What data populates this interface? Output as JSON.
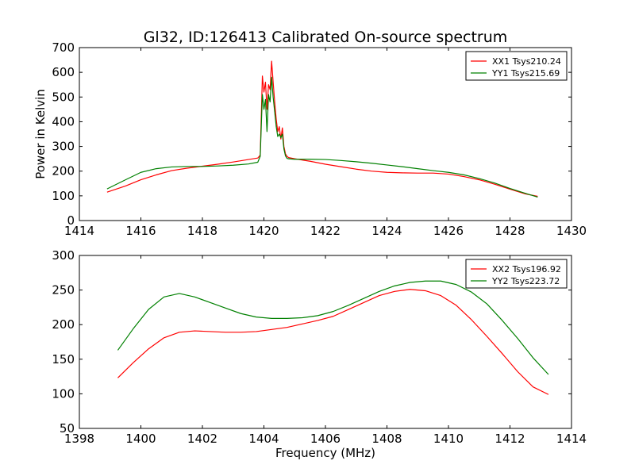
{
  "chart_data": [
    {
      "type": "line",
      "title": "Gl32, ID:126413 Calibrated On-source spectrum",
      "xlabel": "",
      "ylabel": "Power in Kelvin",
      "xlim": [
        1414,
        1430
      ],
      "ylim": [
        0,
        700
      ],
      "xticks": [
        "1414",
        "1416",
        "1418",
        "1420",
        "1422",
        "1424",
        "1426",
        "1428",
        "1430"
      ],
      "yticks": [
        "0",
        "100",
        "200",
        "300",
        "400",
        "500",
        "600",
        "700"
      ],
      "legend_position": "top-right",
      "grid": false,
      "series": [
        {
          "name": "XX1 Tsys210.24",
          "color": "#ff0000",
          "x": [
            1414.9,
            1415.5,
            1416,
            1416.5,
            1417,
            1417.5,
            1418,
            1418.5,
            1419,
            1419.5,
            1419.8,
            1419.88,
            1419.95,
            1420.0,
            1420.05,
            1420.1,
            1420.15,
            1420.2,
            1420.25,
            1420.3,
            1420.35,
            1420.4,
            1420.45,
            1420.5,
            1420.55,
            1420.6,
            1420.65,
            1420.7,
            1420.75,
            1420.8,
            1421,
            1421.5,
            1422,
            1422.5,
            1423,
            1423.5,
            1424,
            1424.5,
            1425,
            1425.5,
            1426,
            1426.5,
            1427,
            1427.5,
            1428,
            1428.5,
            1428.9
          ],
          "y": [
            115,
            140,
            165,
            185,
            202,
            212,
            220,
            228,
            237,
            247,
            253,
            265,
            585,
            520,
            560,
            450,
            550,
            530,
            645,
            560,
            480,
            410,
            360,
            380,
            330,
            375,
            300,
            270,
            260,
            255,
            250,
            240,
            228,
            218,
            208,
            200,
            195,
            193,
            192,
            192,
            188,
            178,
            165,
            147,
            127,
            108,
            98
          ]
        },
        {
          "name": "YY1 Tsys215.69",
          "color": "#008000",
          "x": [
            1414.9,
            1415.5,
            1416,
            1416.5,
            1417,
            1417.5,
            1418,
            1418.5,
            1419,
            1419.5,
            1419.8,
            1419.88,
            1419.95,
            1420.0,
            1420.05,
            1420.1,
            1420.15,
            1420.2,
            1420.25,
            1420.3,
            1420.35,
            1420.4,
            1420.45,
            1420.5,
            1420.55,
            1420.6,
            1420.65,
            1420.7,
            1420.75,
            1420.8,
            1421,
            1421.5,
            1422,
            1422.5,
            1423,
            1423.5,
            1424,
            1424.5,
            1425,
            1425.5,
            1426,
            1426.5,
            1427,
            1427.5,
            1428,
            1428.5,
            1428.9
          ],
          "y": [
            128,
            165,
            195,
            210,
            217,
            219,
            219,
            221,
            224,
            229,
            236,
            260,
            510,
            450,
            490,
            360,
            510,
            480,
            580,
            500,
            440,
            380,
            340,
            350,
            335,
            350,
            290,
            262,
            252,
            250,
            248,
            248,
            247,
            243,
            238,
            232,
            225,
            218,
            210,
            202,
            195,
            185,
            170,
            152,
            130,
            110,
            95
          ]
        }
      ]
    },
    {
      "type": "line",
      "title": "",
      "xlabel": "Frequency (MHz)",
      "ylabel": "",
      "xlim": [
        1398,
        1414
      ],
      "ylim": [
        50,
        300
      ],
      "xticks": [
        "1398",
        "1400",
        "1402",
        "1404",
        "1406",
        "1408",
        "1410",
        "1412",
        "1414"
      ],
      "yticks": [
        "50",
        "100",
        "150",
        "200",
        "250",
        "300"
      ],
      "legend_position": "top-right",
      "grid": false,
      "series": [
        {
          "name": "XX2 Tsys196.92",
          "color": "#ff0000",
          "x": [
            1399.25,
            1399.75,
            1400.25,
            1400.75,
            1401.25,
            1401.75,
            1402.25,
            1402.75,
            1403.25,
            1403.75,
            1404.25,
            1404.75,
            1405.25,
            1405.75,
            1406.25,
            1406.75,
            1407.25,
            1407.75,
            1408.25,
            1408.75,
            1409.25,
            1409.75,
            1410.25,
            1410.75,
            1411.25,
            1411.75,
            1412.25,
            1412.75,
            1413.25
          ],
          "y": [
            123,
            145,
            165,
            181,
            189,
            191,
            190,
            189,
            189,
            190,
            193,
            196,
            201,
            206,
            212,
            222,
            232,
            242,
            248,
            251,
            249,
            242,
            228,
            207,
            183,
            158,
            132,
            110,
            99
          ]
        },
        {
          "name": "YY2 Tsys223.72",
          "color": "#008000",
          "x": [
            1399.25,
            1399.75,
            1400.25,
            1400.75,
            1401.25,
            1401.75,
            1402.25,
            1402.75,
            1403.25,
            1403.75,
            1404.25,
            1404.75,
            1405.25,
            1405.75,
            1406.25,
            1406.75,
            1407.25,
            1407.75,
            1408.25,
            1408.75,
            1409.25,
            1409.75,
            1410.25,
            1410.75,
            1411.25,
            1411.75,
            1412.25,
            1412.75,
            1413.25
          ],
          "y": [
            163,
            194,
            222,
            240,
            245,
            240,
            232,
            224,
            216,
            211,
            209,
            209,
            210,
            213,
            219,
            228,
            238,
            248,
            256,
            261,
            263,
            263,
            258,
            247,
            230,
            206,
            180,
            152,
            128
          ]
        }
      ]
    }
  ]
}
